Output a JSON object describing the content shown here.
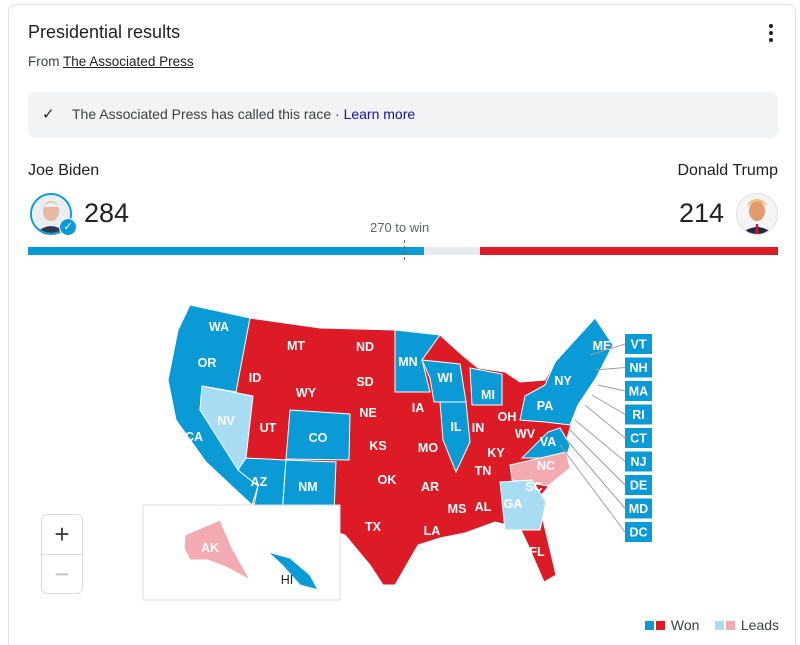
{
  "header": {
    "title": "Presidential results",
    "from_prefix": "From ",
    "source": "The Associated Press",
    "menu_icon": "more-vert-icon"
  },
  "banner": {
    "icon": "check-icon",
    "text": "The Associated Press has called this race · ",
    "link": "Learn more"
  },
  "candidates": [
    {
      "name": "Joe Biden",
      "votes": "284",
      "color": "#0a9ad6",
      "winner": true
    },
    {
      "name": "Donald Trump",
      "votes": "214",
      "color": "#dc1b27",
      "winner": false
    }
  ],
  "threshold": {
    "label": "270 to win",
    "value": 270,
    "total": 538
  },
  "map": {
    "colors": {
      "dem_won": "#0a9ad6",
      "rep_won": "#dc1b27",
      "dem_leads": "#a7dcf3",
      "rep_leads": "#f3aab0",
      "border": "#ffffff"
    },
    "states": [
      {
        "abbr": "WA",
        "status": "dem_won"
      },
      {
        "abbr": "OR",
        "status": "dem_won"
      },
      {
        "abbr": "CA",
        "status": "dem_won"
      },
      {
        "abbr": "NV",
        "status": "dem_leads"
      },
      {
        "abbr": "ID",
        "status": "rep_won"
      },
      {
        "abbr": "MT",
        "status": "rep_won"
      },
      {
        "abbr": "WY",
        "status": "rep_won"
      },
      {
        "abbr": "UT",
        "status": "rep_won"
      },
      {
        "abbr": "AZ",
        "status": "dem_won"
      },
      {
        "abbr": "CO",
        "status": "dem_won"
      },
      {
        "abbr": "NM",
        "status": "dem_won"
      },
      {
        "abbr": "ND",
        "status": "rep_won"
      },
      {
        "abbr": "SD",
        "status": "rep_won"
      },
      {
        "abbr": "NE",
        "status": "rep_won"
      },
      {
        "abbr": "KS",
        "status": "rep_won"
      },
      {
        "abbr": "OK",
        "status": "rep_won"
      },
      {
        "abbr": "TX",
        "status": "rep_won"
      },
      {
        "abbr": "MN",
        "status": "dem_won"
      },
      {
        "abbr": "IA",
        "status": "rep_won"
      },
      {
        "abbr": "MO",
        "status": "rep_won"
      },
      {
        "abbr": "AR",
        "status": "rep_won"
      },
      {
        "abbr": "LA",
        "status": "rep_won"
      },
      {
        "abbr": "WI",
        "status": "dem_won"
      },
      {
        "abbr": "IL",
        "status": "dem_won"
      },
      {
        "abbr": "MI",
        "status": "dem_won"
      },
      {
        "abbr": "IN",
        "status": "rep_won"
      },
      {
        "abbr": "OH",
        "status": "rep_won"
      },
      {
        "abbr": "KY",
        "status": "rep_won"
      },
      {
        "abbr": "TN",
        "status": "rep_won"
      },
      {
        "abbr": "MS",
        "status": "rep_won"
      },
      {
        "abbr": "AL",
        "status": "rep_won"
      },
      {
        "abbr": "GA",
        "status": "dem_leads"
      },
      {
        "abbr": "FL",
        "status": "rep_won"
      },
      {
        "abbr": "SC",
        "status": "rep_won"
      },
      {
        "abbr": "NC",
        "status": "rep_leads"
      },
      {
        "abbr": "VA",
        "status": "dem_won"
      },
      {
        "abbr": "WV",
        "status": "rep_won"
      },
      {
        "abbr": "PA",
        "status": "dem_won"
      },
      {
        "abbr": "NY",
        "status": "dem_won"
      },
      {
        "abbr": "ME",
        "status": "dem_won"
      },
      {
        "abbr": "AK",
        "status": "rep_leads"
      },
      {
        "abbr": "HI",
        "status": "dem_won"
      }
    ],
    "small_states": [
      {
        "abbr": "VT",
        "status": "dem_won"
      },
      {
        "abbr": "NH",
        "status": "dem_won"
      },
      {
        "abbr": "MA",
        "status": "dem_won"
      },
      {
        "abbr": "RI",
        "status": "dem_won"
      },
      {
        "abbr": "CT",
        "status": "dem_won"
      },
      {
        "abbr": "NJ",
        "status": "dem_won"
      },
      {
        "abbr": "DE",
        "status": "dem_won"
      },
      {
        "abbr": "MD",
        "status": "dem_won"
      },
      {
        "abbr": "DC",
        "status": "dem_won"
      }
    ],
    "zoom_in": "+",
    "zoom_out": "−"
  },
  "legend": {
    "won": "Won",
    "leads": "Leads"
  }
}
